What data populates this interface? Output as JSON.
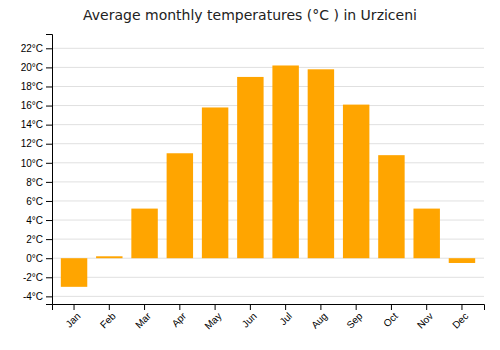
{
  "chart_data": {
    "type": "bar",
    "title": "Average monthly temperatures (°C ) in Urziceni",
    "categories": [
      "Jan",
      "Feb",
      "Mar",
      "Apr",
      "May",
      "Jun",
      "Jul",
      "Aug",
      "Sep",
      "Oct",
      "Nov",
      "Dec"
    ],
    "values": [
      -3.0,
      0.2,
      5.2,
      11.0,
      15.8,
      19.0,
      20.2,
      19.8,
      16.1,
      10.8,
      5.2,
      -0.5
    ],
    "color": "#FFA500",
    "ylim": [
      -4.8,
      23.5
    ],
    "yticks": [
      {
        "value": -4,
        "label": "-4°C"
      },
      {
        "value": -2,
        "label": "-2°C"
      },
      {
        "value": 0,
        "label": "0°C"
      },
      {
        "value": 2,
        "label": "2°C"
      },
      {
        "value": 4,
        "label": "4°C"
      },
      {
        "value": 6,
        "label": "6°C"
      },
      {
        "value": 8,
        "label": "8°C"
      },
      {
        "value": 10,
        "label": "10°C"
      },
      {
        "value": 12,
        "label": "12°C"
      },
      {
        "value": 14,
        "label": "14°C"
      },
      {
        "value": 16,
        "label": "16°C"
      },
      {
        "value": 18,
        "label": "18°C"
      },
      {
        "value": 20,
        "label": "20°C"
      },
      {
        "value": 22,
        "label": "22°C"
      }
    ],
    "grid": true
  }
}
